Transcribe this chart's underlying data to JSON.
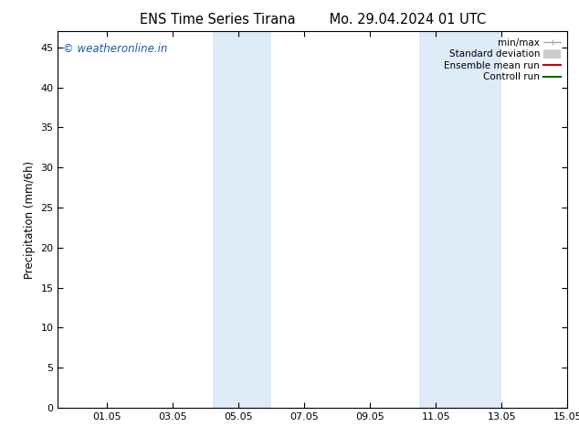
{
  "title_left": "ENS Time Series Tirana",
  "title_right": "Mo. 29.04.2024 01 UTC",
  "ylabel": "Precipitation (mm/6h)",
  "xlim": [
    -0.5,
    14.5
  ],
  "ylim": [
    0,
    47
  ],
  "yticks": [
    0,
    5,
    10,
    15,
    20,
    25,
    30,
    35,
    40,
    45
  ],
  "xtick_labels": [
    "01.05",
    "03.05",
    "05.05",
    "07.05",
    "09.05",
    "11.05",
    "13.05",
    "15.05"
  ],
  "xtick_positions": [
    1,
    3,
    5,
    7,
    9,
    11,
    13,
    15
  ],
  "shaded_bands": [
    {
      "x_start": 4.2,
      "x_end": 6.0
    },
    {
      "x_start": 10.5,
      "x_end": 13.0
    }
  ],
  "shaded_color": "#ddeaf7",
  "background_color": "#ffffff",
  "watermark_text": "© weatheronline.in",
  "watermark_color": "#1a5aab",
  "legend_entries": [
    {
      "label": "min/max",
      "color": "#aaaaaa"
    },
    {
      "label": "Standard deviation",
      "color": "#cccccc"
    },
    {
      "label": "Ensemble mean run",
      "color": "#cc0000"
    },
    {
      "label": "Controll run",
      "color": "#006600"
    }
  ],
  "title_fontsize": 10.5,
  "tick_fontsize": 8,
  "legend_fontsize": 7.5,
  "ylabel_fontsize": 8.5,
  "watermark_fontsize": 8.5
}
